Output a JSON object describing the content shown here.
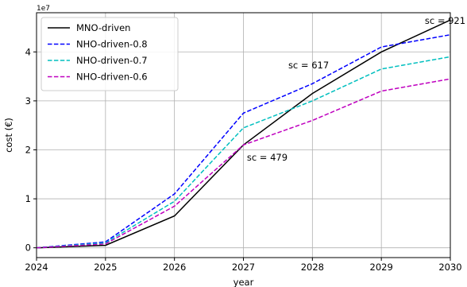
{
  "chart_data": {
    "type": "line",
    "title": "",
    "xlabel": "year",
    "ylabel": "cost (€)",
    "y_offset_text": "1e7",
    "x": [
      2024,
      2025,
      2026,
      2027,
      2028,
      2029,
      2030
    ],
    "xlim": [
      2024,
      2030
    ],
    "ylim": [
      -2000000,
      48000000
    ],
    "x_ticks": [
      "2024",
      "2025",
      "2026",
      "2027",
      "2028",
      "2029",
      "2030"
    ],
    "y_ticks": [
      {
        "value": 0,
        "label": "0"
      },
      {
        "value": 10000000,
        "label": "1"
      },
      {
        "value": 20000000,
        "label": "2"
      },
      {
        "value": 30000000,
        "label": "3"
      },
      {
        "value": 40000000,
        "label": "4"
      }
    ],
    "grid": true,
    "legend_position": "top-left",
    "series": [
      {
        "name": "MNO-driven",
        "color": "#000000",
        "dash": "solid",
        "values": [
          0,
          500000,
          6500000,
          21000000,
          31500000,
          40000000,
          46500000
        ]
      },
      {
        "name": "NHO-driven-0.8",
        "color": "#0000ff",
        "dash": "dashed",
        "values": [
          0,
          1200000,
          11000000,
          27500000,
          33500000,
          41000000,
          43500000
        ]
      },
      {
        "name": "NHO-driven-0.7",
        "color": "#00bfbf",
        "dash": "dashed",
        "values": [
          0,
          1000000,
          9500000,
          24500000,
          30000000,
          36500000,
          39000000
        ]
      },
      {
        "name": "NHO-driven-0.6",
        "color": "#bf00bf",
        "dash": "dashed",
        "values": [
          0,
          800000,
          8500000,
          21000000,
          26000000,
          32000000,
          34500000
        ]
      }
    ],
    "annotations": [
      {
        "text": "sc = 479",
        "x": 2027.05,
        "y": 17800000
      },
      {
        "text": "sc = 617",
        "x": 2027.65,
        "y": 36600000
      },
      {
        "text": "sc = 921",
        "x": 2029.63,
        "y": 45700000
      }
    ]
  }
}
